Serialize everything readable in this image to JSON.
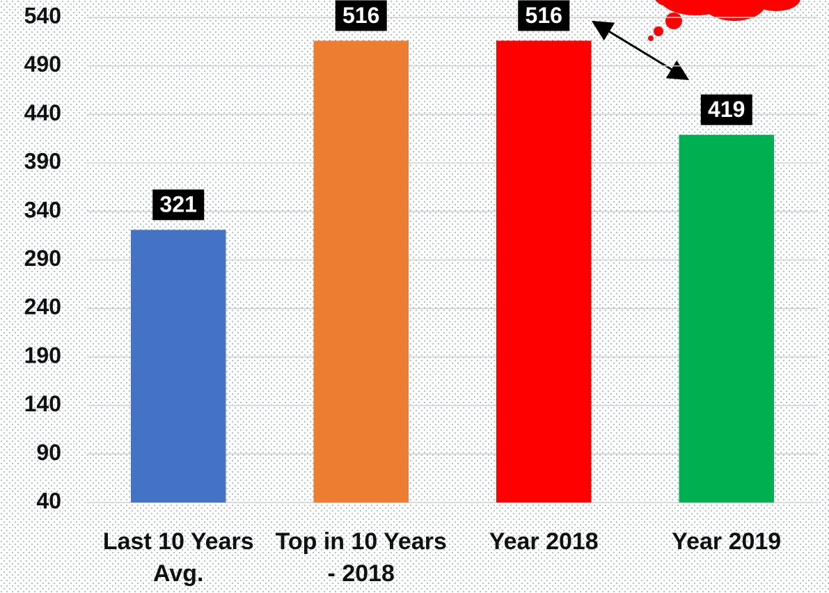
{
  "chart_data": {
    "type": "bar",
    "categories": [
      "Last 10 Years Avg.",
      "Top in 10 Years - 2018",
      "Year 2018",
      "Year 2019"
    ],
    "values": [
      321,
      516,
      516,
      419
    ],
    "colors": [
      "#4472c4",
      "#ed7d31",
      "#ff0000",
      "#00b050"
    ],
    "ylim": [
      40,
      540
    ],
    "yticks": [
      40,
      90,
      140,
      190,
      240,
      290,
      340,
      390,
      440,
      490,
      540
    ],
    "grid": true
  }
}
